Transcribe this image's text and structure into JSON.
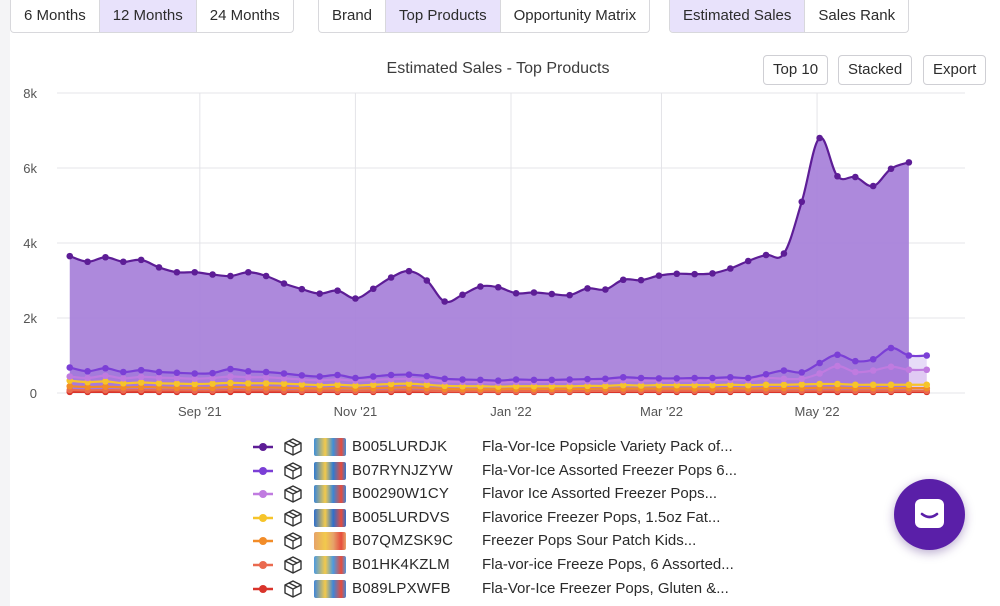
{
  "toggles": {
    "period": [
      "6 Months",
      "12 Months",
      "24 Months"
    ],
    "period_active": 1,
    "view": [
      "Brand",
      "Top Products",
      "Opportunity Matrix"
    ],
    "view_active": 1,
    "metric": [
      "Estimated Sales",
      "Sales Rank"
    ],
    "metric_active": 0
  },
  "toolbar": {
    "top10": "Top 10",
    "stacked": "Stacked",
    "export": "Export"
  },
  "colors": {
    "accent": "#5a1fa8",
    "active_segment": "#e8e2fb",
    "area_fill": "#a67fd9",
    "grid": "#e4e4e8"
  },
  "chart_data": {
    "type": "area",
    "title": "Estimated Sales - Top Products",
    "xlabel": "",
    "ylabel": "",
    "ylim": [
      0,
      8000
    ],
    "y_ticks": [
      "0",
      "2k",
      "4k",
      "6k",
      "8k"
    ],
    "x_ticks": [
      "Sep '21",
      "Nov '21",
      "Jan '22",
      "Mar '22",
      "May '22"
    ],
    "x": [
      "2021-07-12",
      "2021-07-19",
      "2021-07-26",
      "2021-08-02",
      "2021-08-09",
      "2021-08-16",
      "2021-08-23",
      "2021-08-30",
      "2021-09-06",
      "2021-09-13",
      "2021-09-20",
      "2021-09-27",
      "2021-10-04",
      "2021-10-11",
      "2021-10-18",
      "2021-10-25",
      "2021-11-01",
      "2021-11-08",
      "2021-11-15",
      "2021-11-22",
      "2021-11-29",
      "2021-12-06",
      "2021-12-13",
      "2021-12-20",
      "2021-12-27",
      "2022-01-03",
      "2022-01-10",
      "2022-01-17",
      "2022-01-24",
      "2022-01-31",
      "2022-02-07",
      "2022-02-14",
      "2022-02-21",
      "2022-02-28",
      "2022-03-07",
      "2022-03-14",
      "2022-03-21",
      "2022-03-28",
      "2022-04-04",
      "2022-04-11",
      "2022-04-18",
      "2022-04-25",
      "2022-05-02",
      "2022-05-09",
      "2022-05-16",
      "2022-05-23",
      "2022-05-30",
      "2022-06-06",
      "2022-06-13",
      "2022-06-20"
    ],
    "grid": true,
    "legend_position": "bottom",
    "series": [
      {
        "name": "B005LURDJK",
        "color": "#5d1d96",
        "values": [
          3650,
          3500,
          3620,
          3500,
          3550,
          3350,
          3220,
          3220,
          3160,
          3120,
          3220,
          3120,
          2920,
          2770,
          2650,
          2730,
          2520,
          2780,
          3080,
          3250,
          3000,
          2440,
          2620,
          2840,
          2820,
          2660,
          2680,
          2640,
          2610,
          2790,
          2760,
          3020,
          3010,
          3130,
          3180,
          3170,
          3190,
          3320,
          3520,
          3680,
          3720,
          5100,
          6800,
          5780,
          5760,
          5520,
          5980,
          6150,
          null,
          null
        ]
      },
      {
        "name": "B07RYNJZYW",
        "color": "#7b3fd6",
        "values": [
          680,
          580,
          660,
          560,
          610,
          560,
          540,
          520,
          530,
          640,
          580,
          560,
          520,
          470,
          440,
          480,
          400,
          440,
          480,
          490,
          450,
          380,
          360,
          350,
          330,
          360,
          350,
          350,
          360,
          370,
          380,
          420,
          400,
          390,
          390,
          400,
          400,
          420,
          400,
          500,
          600,
          550,
          800,
          1020,
          850,
          900,
          1200,
          1000,
          1000,
          null
        ]
      },
      {
        "name": "B00290W1CY",
        "color": "#c07be0",
        "values": [
          440,
          400,
          460,
          390,
          430,
          410,
          400,
          380,
          400,
          440,
          420,
          420,
          390,
          360,
          340,
          360,
          330,
          350,
          370,
          380,
          350,
          310,
          300,
          290,
          280,
          300,
          300,
          300,
          300,
          310,
          320,
          340,
          330,
          330,
          330,
          330,
          340,
          350,
          340,
          400,
          380,
          380,
          520,
          720,
          560,
          600,
          700,
          620,
          620,
          null
        ]
      },
      {
        "name": "B005LURDVS",
        "color": "#f6c42a",
        "values": [
          330,
          290,
          310,
          260,
          280,
          260,
          250,
          240,
          250,
          270,
          260,
          260,
          250,
          230,
          210,
          220,
          200,
          220,
          240,
          250,
          220,
          190,
          180,
          180,
          170,
          180,
          180,
          180,
          180,
          190,
          190,
          210,
          200,
          210,
          210,
          210,
          210,
          220,
          210,
          220,
          220,
          230,
          240,
          240,
          220,
          220,
          220,
          220,
          220,
          null
        ]
      },
      {
        "name": "B07QMZSK9C",
        "color": "#f28c28",
        "values": [
          180,
          160,
          170,
          150,
          160,
          150,
          140,
          140,
          140,
          160,
          150,
          150,
          140,
          130,
          120,
          130,
          120,
          130,
          140,
          150,
          130,
          110,
          100,
          100,
          100,
          110,
          110,
          110,
          110,
          110,
          120,
          120,
          120,
          120,
          120,
          120,
          120,
          130,
          120,
          130,
          130,
          130,
          140,
          140,
          130,
          130,
          130,
          130,
          130,
          null
        ]
      },
      {
        "name": "B01HK4KZLM",
        "color": "#ea6a4f",
        "values": [
          80,
          70,
          75,
          70,
          75,
          70,
          70,
          65,
          65,
          75,
          70,
          70,
          65,
          60,
          60,
          60,
          55,
          60,
          65,
          70,
          60,
          50,
          50,
          50,
          50,
          50,
          50,
          50,
          50,
          55,
          55,
          60,
          60,
          60,
          60,
          60,
          60,
          60,
          60,
          60,
          60,
          60,
          65,
          65,
          60,
          60,
          60,
          60,
          60,
          null
        ]
      },
      {
        "name": "B089LPXWFB",
        "color": "#d9342b",
        "values": [
          30,
          30,
          30,
          30,
          30,
          30,
          30,
          30,
          30,
          30,
          30,
          30,
          30,
          30,
          30,
          30,
          30,
          30,
          30,
          30,
          30,
          30,
          30,
          30,
          30,
          30,
          30,
          30,
          30,
          30,
          30,
          30,
          30,
          30,
          30,
          30,
          30,
          30,
          30,
          30,
          30,
          30,
          30,
          30,
          30,
          30,
          30,
          30,
          30,
          null
        ]
      }
    ]
  },
  "legend": [
    {
      "asin": "B005LURDJK",
      "name": "Fla-Vor-Ice Popsicle Variety Pack of...",
      "icon": "package-icon",
      "thumb": "product-thumbnail"
    },
    {
      "asin": "B07RYNJZYW",
      "name": "Fla-Vor-Ice Assorted Freezer Pops 6...",
      "icon": "package-icon",
      "thumb": "product-thumbnail"
    },
    {
      "asin": "B00290W1CY",
      "name": "Flavor Ice Assorted Freezer Pops...",
      "icon": "package-icon",
      "thumb": "product-thumbnail"
    },
    {
      "asin": "B005LURDVS",
      "name": "Flavorice Freezer Pops, 1.5oz Fat...",
      "icon": "package-icon",
      "thumb": "product-thumbnail"
    },
    {
      "asin": "B07QMZSK9C",
      "name": "Freezer Pops Sour Patch Kids...",
      "icon": "package-icon",
      "thumb": "product-thumbnail"
    },
    {
      "asin": "B01HK4KZLM",
      "name": "Fla-vor-ice Freeze Pops, 6 Assorted...",
      "icon": "package-icon",
      "thumb": "product-thumbnail"
    },
    {
      "asin": "B089LPXWFB",
      "name": "Fla-Vor-Ice Freezer Pops, Gluten &...",
      "icon": "package-icon",
      "thumb": "product-thumbnail"
    }
  ],
  "chat": {
    "icon": "chat-bubble-icon"
  }
}
